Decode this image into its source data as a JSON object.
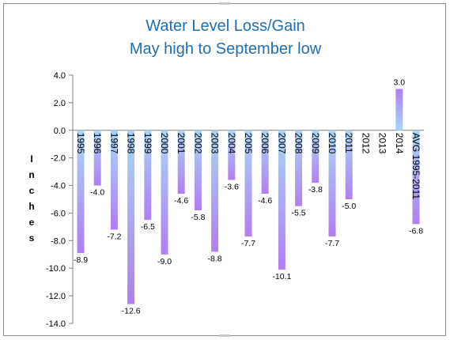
{
  "chart_data": {
    "type": "bar",
    "title": "Water Level Loss/Gain",
    "subtitle": "May high to September low",
    "ylabel": "Inches",
    "xlabel": "",
    "ylim": [
      -14,
      4
    ],
    "yticks": [
      "4.0",
      "2.0",
      "0.0",
      "-2.0",
      "-4.0",
      "-6.0",
      "-8.0",
      "-10.0",
      "-12.0",
      "-14.0"
    ],
    "categories": [
      "1995",
      "1996",
      "1997",
      "1998",
      "1999",
      "2000",
      "2001",
      "2002",
      "2003",
      "2004",
      "2005",
      "2006",
      "2007",
      "2008",
      "2009",
      "2010",
      "2011",
      "2012",
      "2013",
      "2014",
      "AVG 1995-2011"
    ],
    "values": [
      -8.9,
      -4.0,
      -7.2,
      -12.6,
      -6.5,
      -9.0,
      -4.6,
      -5.8,
      -8.8,
      -3.6,
      -7.7,
      -4.6,
      -10.1,
      -5.5,
      -3.8,
      -7.7,
      -5.0,
      null,
      null,
      3.0,
      -6.8
    ],
    "data_labels": [
      "-8.9",
      "-4.0",
      "-7.2",
      "-12.6",
      "-6.5",
      "-9.0",
      "-4.6",
      "-5.8",
      "-8.8",
      "-3.6",
      "-7.7",
      "-4.6",
      "-10.1",
      "-5.5",
      "-3.8",
      "-7.7",
      "-5.0",
      "",
      "",
      "3.0",
      "-6.8"
    ],
    "grid": false,
    "legend": "none",
    "colors": {
      "bar_top": "#a9d6f5",
      "bar_bottom": "#b07ff0",
      "title": "#1f6fb0"
    }
  }
}
